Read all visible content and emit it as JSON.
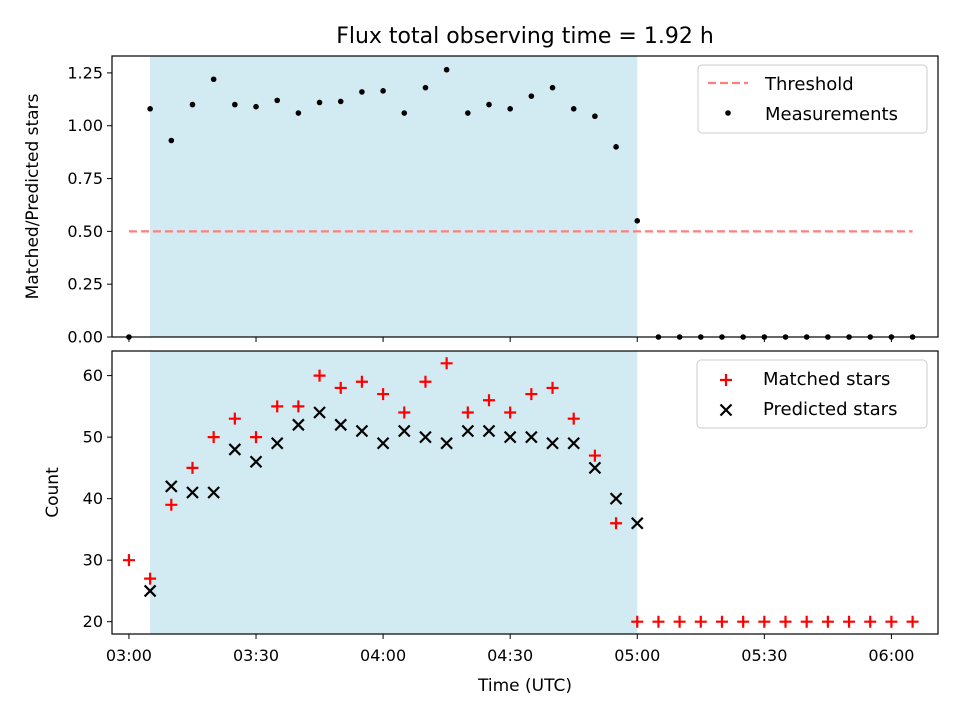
{
  "title": "Flux total observing time = 1.92 h",
  "colors": {
    "shade": "#add8e6",
    "threshold": "#ff7f7f",
    "matched": "#ff0000",
    "predicted": "#000000",
    "measurements": "#000000"
  },
  "chart_data": [
    {
      "type": "scatter",
      "ylabel": "Matched/Predicted stars",
      "ylim": [
        0,
        1.33
      ],
      "yticks": [
        "0.00",
        "0.25",
        "0.50",
        "0.75",
        "1.00",
        "1.25"
      ],
      "shaded_region": [
        "03:05",
        "05:00"
      ],
      "legend": {
        "position": "top-right",
        "items": [
          "Threshold",
          "Measurements"
        ]
      },
      "series": [
        {
          "name": "Threshold",
          "kind": "dashed-line",
          "x": [
            "03:00",
            "06:05"
          ],
          "y": [
            0.5,
            0.5
          ]
        },
        {
          "name": "Measurements",
          "kind": "points",
          "x": [
            "03:00",
            "03:05",
            "03:10",
            "03:15",
            "03:20",
            "03:25",
            "03:30",
            "03:35",
            "03:40",
            "03:45",
            "03:50",
            "03:55",
            "04:00",
            "04:05",
            "04:10",
            "04:15",
            "04:20",
            "04:25",
            "04:30",
            "04:35",
            "04:40",
            "04:45",
            "04:50",
            "04:55",
            "05:00",
            "05:05",
            "05:10",
            "05:15",
            "05:20",
            "05:25",
            "05:30",
            "05:35",
            "05:40",
            "05:45",
            "05:50",
            "05:55",
            "06:00",
            "06:05"
          ],
          "y": [
            0,
            1.08,
            0.93,
            1.1,
            1.22,
            1.1,
            1.09,
            1.12,
            1.06,
            1.11,
            1.115,
            1.16,
            1.165,
            1.06,
            1.18,
            1.265,
            1.06,
            1.1,
            1.08,
            1.14,
            1.18,
            1.08,
            1.045,
            0.9,
            0.55,
            0,
            0,
            0,
            0,
            0,
            0,
            0,
            0,
            0,
            0,
            0,
            0,
            0
          ]
        }
      ]
    },
    {
      "type": "scatter",
      "xlabel": "Time (UTC)",
      "ylabel": "Count",
      "ylim": [
        18,
        64
      ],
      "yticks": [
        "20",
        "30",
        "40",
        "50",
        "60"
      ],
      "xticks": [
        "03:00",
        "03:30",
        "04:00",
        "04:30",
        "05:00",
        "05:30",
        "06:00"
      ],
      "shaded_region": [
        "03:05",
        "05:00"
      ],
      "legend": {
        "position": "top-right",
        "items": [
          "Matched stars",
          "Predicted stars"
        ]
      },
      "series": [
        {
          "name": "Matched stars",
          "marker": "+",
          "x": [
            "03:00",
            "03:05",
            "03:10",
            "03:15",
            "03:20",
            "03:25",
            "03:30",
            "03:35",
            "03:40",
            "03:45",
            "03:50",
            "03:55",
            "04:00",
            "04:05",
            "04:10",
            "04:15",
            "04:20",
            "04:25",
            "04:30",
            "04:35",
            "04:40",
            "04:45",
            "04:50",
            "04:55",
            "05:00",
            "05:05",
            "05:10",
            "05:15",
            "05:20",
            "05:25",
            "05:30",
            "05:35",
            "05:40",
            "05:45",
            "05:50",
            "05:55",
            "06:00",
            "06:05"
          ],
          "y": [
            30,
            27,
            39,
            45,
            50,
            53,
            50,
            55,
            55,
            60,
            58,
            59,
            57,
            54,
            59,
            62,
            54,
            56,
            54,
            57,
            58,
            53,
            47,
            36,
            20,
            20,
            20,
            20,
            20,
            20,
            20,
            20,
            20,
            20,
            20,
            20,
            20,
            20
          ]
        },
        {
          "name": "Predicted stars",
          "marker": "x",
          "x": [
            "03:05",
            "03:10",
            "03:15",
            "03:20",
            "03:25",
            "03:30",
            "03:35",
            "03:40",
            "03:45",
            "03:50",
            "03:55",
            "04:00",
            "04:05",
            "04:10",
            "04:15",
            "04:20",
            "04:25",
            "04:30",
            "04:35",
            "04:40",
            "04:45",
            "04:50",
            "04:55",
            "05:00"
          ],
          "y": [
            25,
            42,
            41,
            41,
            48,
            46,
            49,
            52,
            54,
            52,
            51,
            49,
            51,
            50,
            49,
            51,
            51,
            50,
            50,
            49,
            49,
            45,
            40,
            36
          ]
        }
      ]
    }
  ]
}
